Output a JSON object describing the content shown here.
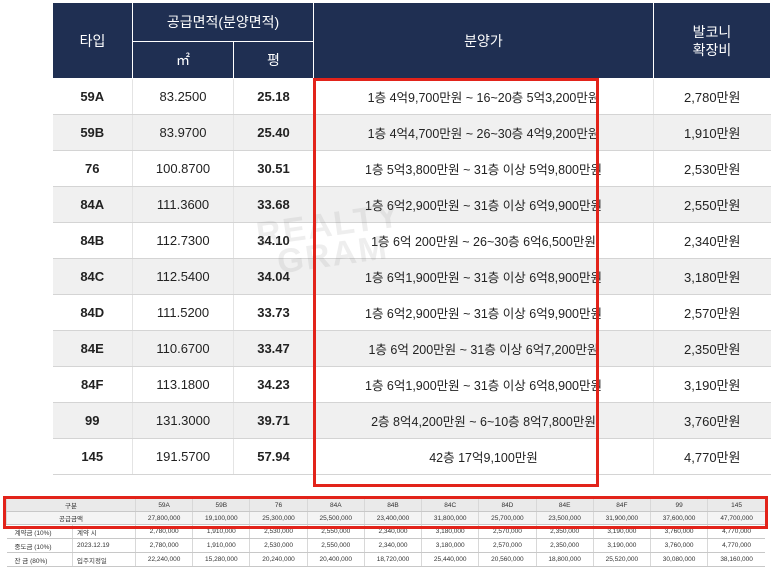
{
  "header": {
    "type": "타입",
    "area_group": "공급면적(분양면적)",
    "sqm": "㎡",
    "pyeong": "평",
    "price": "분양가",
    "balcony_line1": "발코니",
    "balcony_line2": "확장비"
  },
  "rows": [
    {
      "type": "59A",
      "sqm": "83.2500",
      "pyeong": "25.18",
      "price": "1층 4억9,700만원 ~  16~20층 5억3,200만원",
      "balcony": "2,780만원"
    },
    {
      "type": "59B",
      "sqm": "83.9700",
      "pyeong": "25.40",
      "price": "1층 4억4,700만원 ~ 26~30층 4억9,200만원",
      "balcony": "1,910만원"
    },
    {
      "type": "76",
      "sqm": "100.8700",
      "pyeong": "30.51",
      "price": "1층 5억3,800만원 ~ 31층 이상 5억9,800만원",
      "balcony": "2,530만원"
    },
    {
      "type": "84A",
      "sqm": "111.3600",
      "pyeong": "33.68",
      "price": "1층 6억2,900만원 ~ 31층 이상 6억9,900만원",
      "balcony": "2,550만원"
    },
    {
      "type": "84B",
      "sqm": "112.7300",
      "pyeong": "34.10",
      "price": "1층 6억 200만원 ~ 26~30층 6억6,500만원",
      "balcony": "2,340만원"
    },
    {
      "type": "84C",
      "sqm": "112.5400",
      "pyeong": "34.04",
      "price": "1층 6억1,900만원 ~ 31층 이상 6억8,900만원",
      "balcony": "3,180만원"
    },
    {
      "type": "84D",
      "sqm": "111.5200",
      "pyeong": "33.73",
      "price": "1층 6억2,900만원 ~ 31층 이상 6억9,900만원",
      "balcony": "2,570만원"
    },
    {
      "type": "84E",
      "sqm": "110.6700",
      "pyeong": "33.47",
      "price": "1층 6억 200만원 ~ 31층 이상 6억7,200만원",
      "balcony": "2,350만원"
    },
    {
      "type": "84F",
      "sqm": "113.1800",
      "pyeong": "34.23",
      "price": "1층 6억1,900만원 ~ 31층 이상 6억8,900만원",
      "balcony": "3,190만원"
    },
    {
      "type": "99",
      "sqm": "131.3000",
      "pyeong": "39.71",
      "price": "2층 8억4,200만원 ~ 6~10층 8억7,800만원",
      "balcony": "3,760만원"
    },
    {
      "type": "145",
      "sqm": "191.5700",
      "pyeong": "57.94",
      "price": "42층 17억9,100만원",
      "balcony": "4,770만원"
    }
  ],
  "watermark": {
    "line1": "REALTY",
    "line2": "GRAM"
  },
  "payment": {
    "head_label": "구분",
    "types": [
      "59A",
      "59B",
      "76",
      "84A",
      "84B",
      "84C",
      "84D",
      "84E",
      "84F",
      "99",
      "145"
    ],
    "total_label": "공급금액",
    "totals": [
      "27,800,000",
      "19,100,000",
      "25,300,000",
      "25,500,000",
      "23,400,000",
      "31,800,000",
      "25,700,000",
      "23,500,000",
      "31,900,000",
      "37,600,000",
      "47,700,000"
    ],
    "deposit": {
      "label": "계약금 (10%)",
      "sub": "계약 시",
      "values": [
        "2,780,000",
        "1,910,000",
        "2,530,000",
        "2,550,000",
        "2,340,000",
        "3,180,000",
        "2,570,000",
        "2,350,000",
        "3,190,000",
        "3,760,000",
        "4,770,000"
      ]
    },
    "middle": {
      "label": "중도금 (10%)",
      "sub": "2023.12.19",
      "values": [
        "2,780,000",
        "1,910,000",
        "2,530,000",
        "2,550,000",
        "2,340,000",
        "3,180,000",
        "2,570,000",
        "2,350,000",
        "3,190,000",
        "3,760,000",
        "4,770,000"
      ]
    },
    "balance": {
      "label": "잔  금 (80%)",
      "sub": "입주지정일",
      "values": [
        "22,240,000",
        "15,280,000",
        "20,240,000",
        "20,400,000",
        "18,720,000",
        "25,440,000",
        "20,560,000",
        "18,800,000",
        "25,520,000",
        "30,080,000",
        "38,160,000"
      ]
    }
  },
  "colors": {
    "header_bg": "#1f2f52",
    "highlight": "#e2231a",
    "row_alt": "#f0f0f0"
  }
}
